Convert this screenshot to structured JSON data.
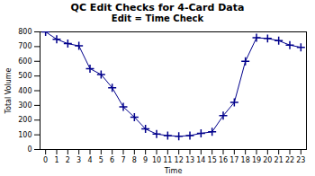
{
  "chart_data": {
    "type": "line",
    "title": "QC Edit Checks for 4-Card Data",
    "subtitle": "Edit = Time Check",
    "x_label": "Time",
    "y_label": "Total Volume",
    "x": [
      0,
      1,
      2,
      3,
      4,
      5,
      6,
      7,
      8,
      9,
      10,
      11,
      12,
      13,
      14,
      15,
      16,
      17,
      18,
      19,
      20,
      21,
      22,
      23
    ],
    "values": [
      800,
      750,
      720,
      705,
      550,
      510,
      420,
      290,
      220,
      140,
      105,
      95,
      90,
      95,
      110,
      120,
      230,
      320,
      600,
      760,
      755,
      740,
      710,
      695
    ],
    "color": "#00008B",
    "marker": "plus",
    "xlim": [
      -0.5,
      23.5
    ],
    "xticks": [
      0,
      1,
      2,
      3,
      4,
      5,
      6,
      7,
      8,
      9,
      10,
      11,
      12,
      13,
      14,
      15,
      16,
      17,
      18,
      19,
      20,
      21,
      22,
      23
    ],
    "ylim": [
      0,
      800
    ],
    "yticks": [
      0,
      100,
      200,
      300,
      400,
      500,
      600,
      700,
      800
    ],
    "grid": false
  }
}
